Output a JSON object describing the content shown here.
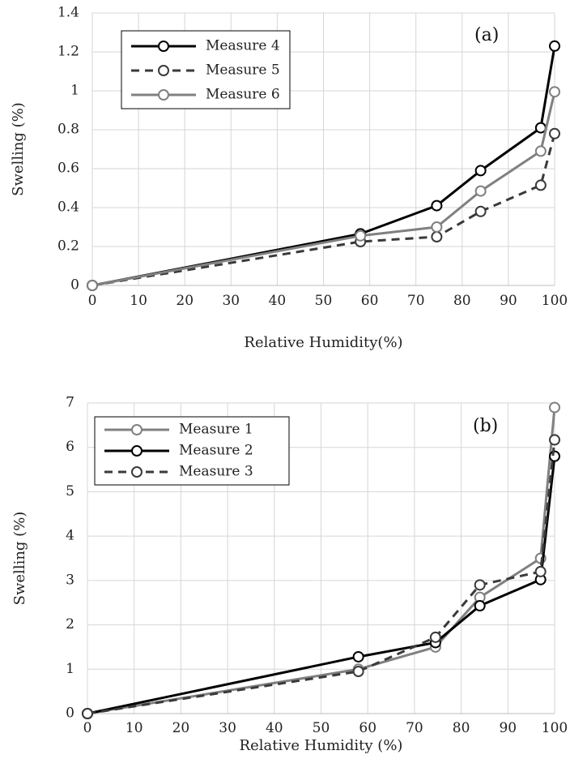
{
  "chart_data": [
    {
      "type": "line",
      "panel_label": "(a)",
      "xlabel": "Relative Humidity(%)",
      "ylabel": "Swelling (%)",
      "xlim": [
        0,
        100
      ],
      "ylim": [
        0,
        1.4
      ],
      "xticks": [
        "0",
        "10",
        "20",
        "30",
        "40",
        "50",
        "60",
        "70",
        "80",
        "90",
        "100"
      ],
      "yticks": [
        "0",
        "0.2",
        "0.4",
        "0.6",
        "0.8",
        "1",
        "1.2",
        "1.4"
      ],
      "grid": true,
      "legend_position": "top-left",
      "series": [
        {
          "name": "Measure 4",
          "color": "#000000",
          "dash": "solid",
          "x": [
            0,
            58,
            74.5,
            84,
            97,
            100
          ],
          "y": [
            0,
            0.265,
            0.41,
            0.59,
            0.81,
            1.23
          ]
        },
        {
          "name": "Measure 5",
          "color": "#3a3a3a",
          "dash": "dashed",
          "x": [
            0,
            58,
            74.5,
            84,
            97,
            100
          ],
          "y": [
            0,
            0.225,
            0.25,
            0.38,
            0.515,
            0.78
          ]
        },
        {
          "name": "Measure 6",
          "color": "#808080",
          "dash": "solid",
          "x": [
            0,
            58,
            74.5,
            84,
            97,
            100
          ],
          "y": [
            0,
            0.255,
            0.3,
            0.485,
            0.69,
            0.995
          ]
        }
      ]
    },
    {
      "type": "line",
      "panel_label": "(b)",
      "xlabel": "Relative Humidity (%)",
      "ylabel": "Swelling (%)",
      "xlim": [
        0,
        100
      ],
      "ylim": [
        0,
        7
      ],
      "xticks": [
        "0",
        "10",
        "20",
        "30",
        "40",
        "50",
        "60",
        "70",
        "80",
        "90",
        "100"
      ],
      "yticks": [
        "0",
        "1",
        "2",
        "3",
        "4",
        "5",
        "6",
        "7"
      ],
      "grid": true,
      "legend_position": "top-left",
      "series": [
        {
          "name": "Measure 1",
          "color": "#808080",
          "dash": "solid",
          "x": [
            0,
            58,
            74.5,
            84,
            97,
            100
          ],
          "y": [
            0,
            1.0,
            1.5,
            2.62,
            3.5,
            6.9
          ]
        },
        {
          "name": "Measure 2",
          "color": "#000000",
          "dash": "solid",
          "x": [
            0,
            58,
            74.5,
            84,
            97,
            100
          ],
          "y": [
            0,
            1.28,
            1.6,
            2.43,
            3.02,
            5.8
          ]
        },
        {
          "name": "Measure 3",
          "color": "#3a3a3a",
          "dash": "dashed",
          "x": [
            0,
            58,
            74.5,
            84,
            97,
            100
          ],
          "y": [
            0,
            0.95,
            1.72,
            2.9,
            3.2,
            6.17
          ]
        }
      ]
    }
  ]
}
